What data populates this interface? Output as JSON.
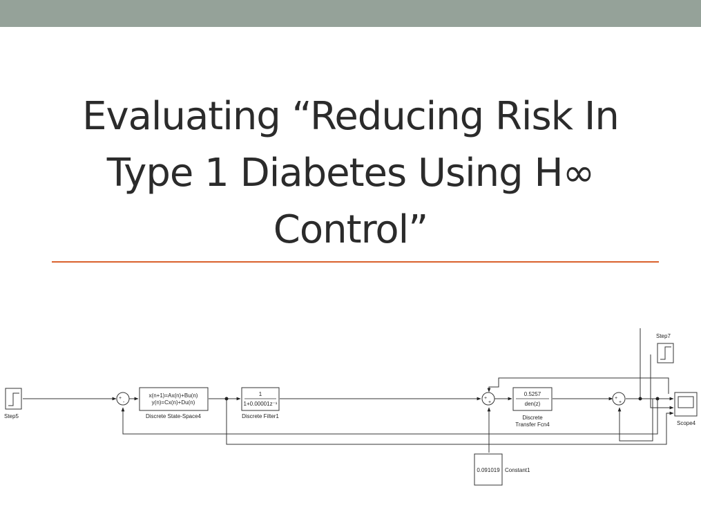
{
  "slide": {
    "title_lines": [
      "Evaluating “Reducing Risk In",
      "Type 1 Diabetes Using H∞",
      "Control”"
    ],
    "accent_color": "#d9602c",
    "top_bar_color": "#95a299"
  },
  "diagram": {
    "step5": {
      "label": "Step5"
    },
    "step7": {
      "label": "Step7"
    },
    "state_space": {
      "line1": "x(n+1)=Ax(n)+Bu(n)",
      "line2": "y(n)=Cx(n)+Du(n)",
      "label": "Discrete State-Space4"
    },
    "filter": {
      "numerator": "1",
      "denominator": "1+0.00001z⁻¹",
      "label": "Discrete Filter1"
    },
    "transfer_fcn": {
      "numerator": "0.5257",
      "denominator": "den(z)",
      "label_line1": "Discrete",
      "label_line2": "Transfer Fcn4"
    },
    "constant": {
      "value": "0.091019",
      "label": "Constant1"
    },
    "scope": {
      "label": "Scope4"
    },
    "sum1_signs": {
      "top": "+",
      "bottom": "-"
    },
    "sum2_signs": {
      "top": "+",
      "bottom": "+"
    },
    "sum3_signs": {
      "top": "+",
      "bottom": "+"
    }
  }
}
